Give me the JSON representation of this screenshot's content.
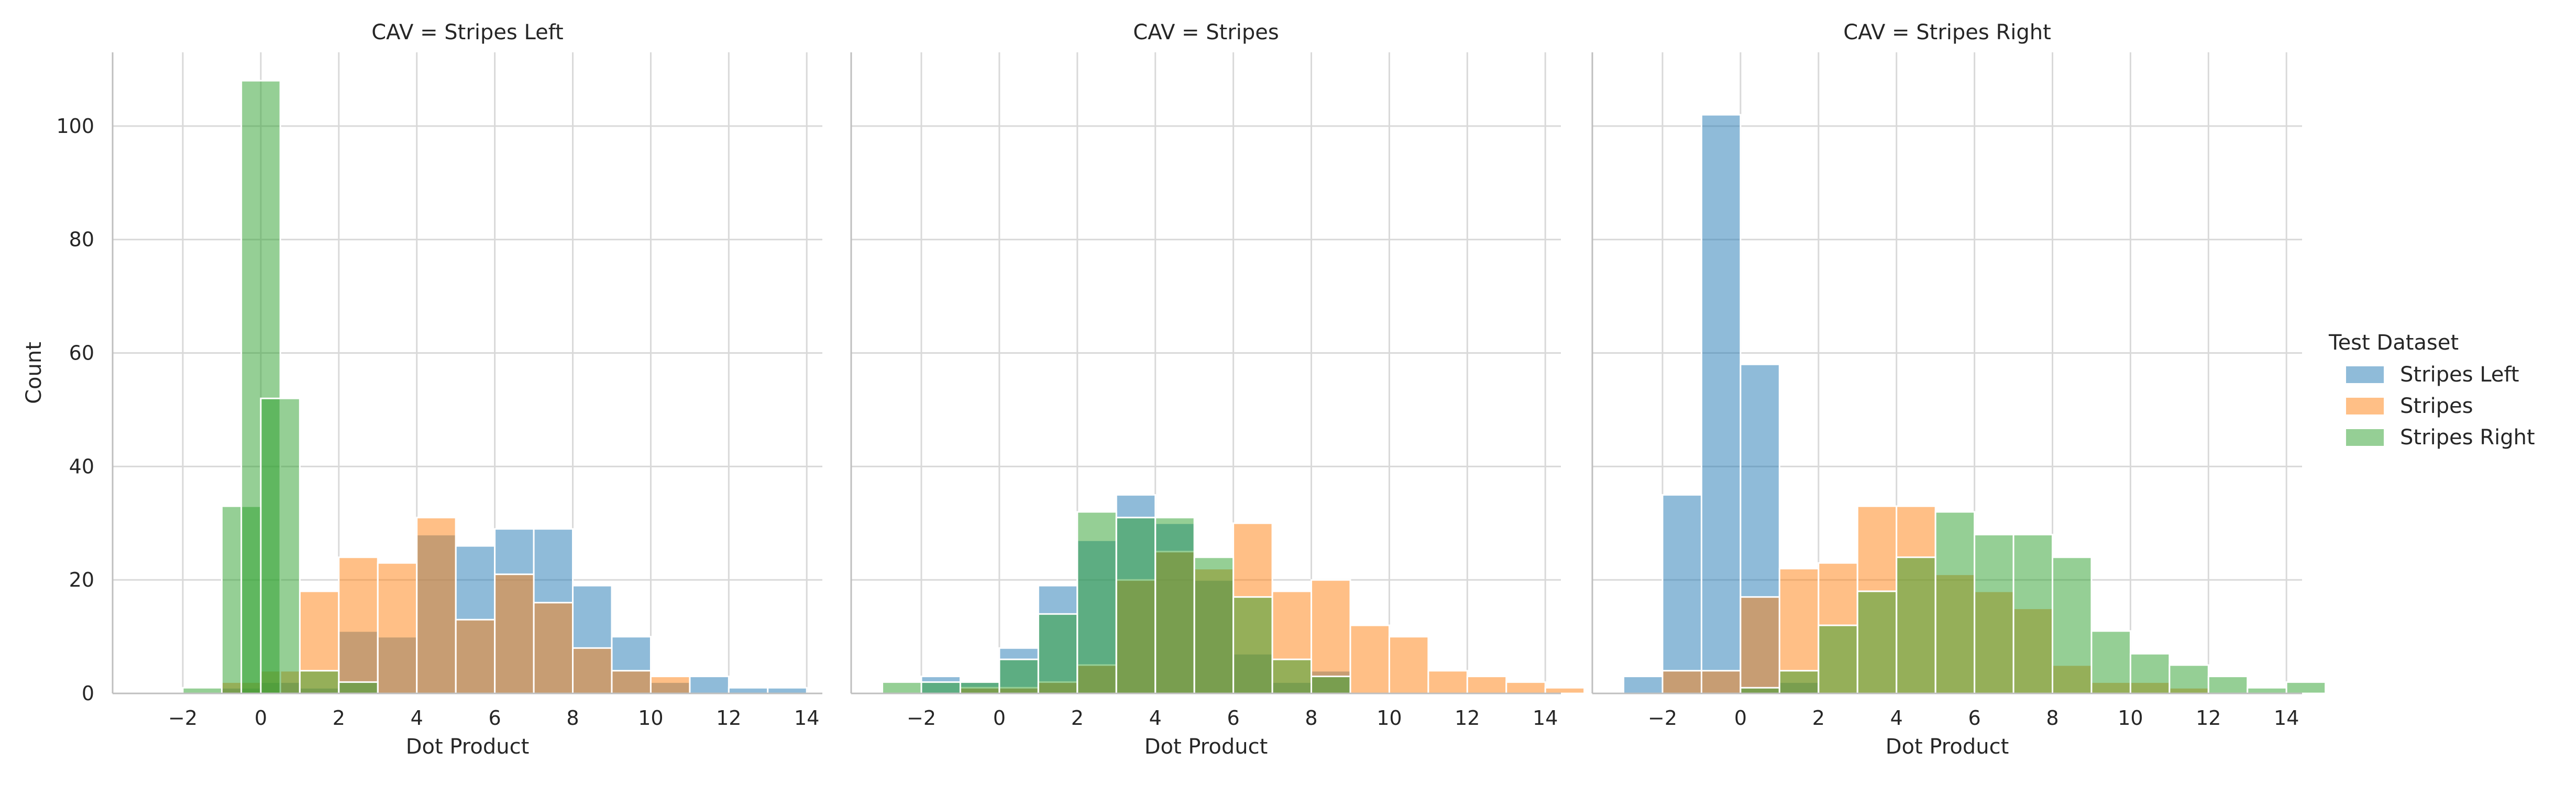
{
  "legend": {
    "title": "Test Dataset",
    "items": [
      {
        "label": "Stripes Left",
        "color": "#1f77b4"
      },
      {
        "label": "Stripes",
        "color": "#ff7f0e"
      },
      {
        "label": "Stripes Right",
        "color": "#2ca02c"
      }
    ]
  },
  "chart_data": [
    {
      "type": "histogram",
      "title": "CAV = Stripes Left",
      "xlabel": "Dot Product",
      "ylabel": "Count",
      "xlim": [
        -3.8,
        14.4
      ],
      "ylim": [
        0,
        113
      ],
      "xticks": [
        -2,
        0,
        2,
        4,
        6,
        8,
        10,
        12,
        14
      ],
      "yticks": [
        0,
        20,
        40,
        60,
        80,
        100
      ],
      "bin_width": 1.0,
      "series": [
        {
          "name": "Stripes Left",
          "color": "#1f77b4",
          "bins": [
            [
              -1.5,
              0
            ],
            [
              -1,
              1
            ],
            [
              0,
              2
            ],
            [
              1,
              1
            ],
            [
              2,
              11
            ],
            [
              3,
              10
            ],
            [
              4,
              28
            ],
            [
              5,
              26
            ],
            [
              6,
              29
            ],
            [
              7,
              29
            ],
            [
              8,
              19
            ],
            [
              9,
              10
            ],
            [
              10,
              2
            ],
            [
              11,
              3
            ],
            [
              12,
              1
            ],
            [
              13,
              1
            ]
          ]
        },
        {
          "name": "Stripes",
          "color": "#ff7f0e",
          "bins": [
            [
              -1,
              2
            ],
            [
              0,
              4
            ],
            [
              1,
              18
            ],
            [
              2,
              24
            ],
            [
              3,
              23
            ],
            [
              4,
              31
            ],
            [
              5,
              13
            ],
            [
              6,
              21
            ],
            [
              7,
              16
            ],
            [
              8,
              8
            ],
            [
              9,
              4
            ],
            [
              10,
              3
            ]
          ]
        },
        {
          "name": "Stripes Right",
          "color": "#2ca02c",
          "bins": [
            [
              -2,
              1
            ],
            [
              -1,
              33
            ],
            [
              -0.5,
              108
            ],
            [
              0,
              52
            ],
            [
              1,
              4
            ],
            [
              2,
              2
            ]
          ]
        }
      ]
    },
    {
      "type": "histogram",
      "title": "CAV = Stripes",
      "xlabel": "Dot Product",
      "ylabel": "",
      "xlim": [
        -3.8,
        14.4
      ],
      "ylim": [
        0,
        113
      ],
      "xticks": [
        -2,
        0,
        2,
        4,
        6,
        8,
        10,
        12,
        14
      ],
      "yticks": [
        0,
        20,
        40,
        60,
        80,
        100
      ],
      "bin_width": 1.0,
      "series": [
        {
          "name": "Stripes Left",
          "color": "#1f77b4",
          "bins": [
            [
              -2,
              3
            ],
            [
              -1,
              2
            ],
            [
              0,
              8
            ],
            [
              1,
              19
            ],
            [
              2,
              27
            ],
            [
              3,
              35
            ],
            [
              4,
              30
            ],
            [
              5,
              20
            ],
            [
              6,
              7
            ],
            [
              7,
              2
            ],
            [
              8,
              4
            ]
          ]
        },
        {
          "name": "Stripes",
          "color": "#ff7f0e",
          "bins": [
            [
              -1,
              1
            ],
            [
              0,
              1
            ],
            [
              1,
              2
            ],
            [
              2,
              5
            ],
            [
              3,
              20
            ],
            [
              4,
              25
            ],
            [
              5,
              22
            ],
            [
              6,
              30
            ],
            [
              7,
              18
            ],
            [
              8,
              20
            ],
            [
              9,
              12
            ],
            [
              10,
              10
            ],
            [
              11,
              4
            ],
            [
              12,
              3
            ],
            [
              13,
              2
            ],
            [
              14,
              1
            ]
          ]
        },
        {
          "name": "Stripes Right",
          "color": "#2ca02c",
          "bins": [
            [
              -3,
              2
            ],
            [
              -2,
              2
            ],
            [
              -1,
              2
            ],
            [
              0,
              6
            ],
            [
              1,
              14
            ],
            [
              2,
              32
            ],
            [
              3,
              31
            ],
            [
              4,
              31
            ],
            [
              5,
              24
            ],
            [
              6,
              17
            ],
            [
              7,
              6
            ],
            [
              8,
              3
            ]
          ]
        }
      ]
    },
    {
      "type": "histogram",
      "title": "CAV = Stripes Right",
      "xlabel": "Dot Product",
      "ylabel": "",
      "xlim": [
        -3.8,
        14.4
      ],
      "ylim": [
        0,
        113
      ],
      "xticks": [
        -2,
        0,
        2,
        4,
        6,
        8,
        10,
        12,
        14
      ],
      "yticks": [
        0,
        20,
        40,
        60,
        80,
        100
      ],
      "bin_width": 1.0,
      "series": [
        {
          "name": "Stripes Left",
          "color": "#1f77b4",
          "bins": [
            [
              -3,
              3
            ],
            [
              -2,
              35
            ],
            [
              -1,
              102
            ],
            [
              0,
              58
            ],
            [
              1,
              2
            ]
          ]
        },
        {
          "name": "Stripes",
          "color": "#ff7f0e",
          "bins": [
            [
              -2,
              4
            ],
            [
              -1,
              4
            ],
            [
              0,
              17
            ],
            [
              1,
              22
            ],
            [
              2,
              23
            ],
            [
              3,
              33
            ],
            [
              4,
              33
            ],
            [
              5,
              21
            ],
            [
              6,
              18
            ],
            [
              7,
              15
            ],
            [
              8,
              5
            ],
            [
              9,
              2
            ],
            [
              10,
              2
            ],
            [
              11,
              1
            ]
          ]
        },
        {
          "name": "Stripes Right",
          "color": "#2ca02c",
          "bins": [
            [
              0,
              1
            ],
            [
              1,
              4
            ],
            [
              2,
              12
            ],
            [
              3,
              18
            ],
            [
              4,
              24
            ],
            [
              5,
              32
            ],
            [
              6,
              28
            ],
            [
              7,
              28
            ],
            [
              8,
              24
            ],
            [
              9,
              11
            ],
            [
              10,
              7
            ],
            [
              11,
              5
            ],
            [
              12,
              3
            ],
            [
              13,
              1
            ],
            [
              14,
              2
            ]
          ]
        }
      ]
    }
  ]
}
